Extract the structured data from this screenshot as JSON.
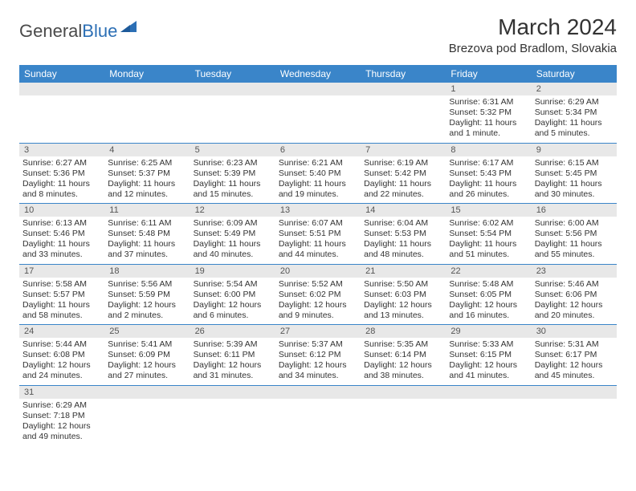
{
  "logo": {
    "general": "General",
    "blue": "Blue"
  },
  "title": "March 2024",
  "location": "Brezova pod Bradlom, Slovakia",
  "colors": {
    "header_bg": "#3a85c9",
    "header_text": "#ffffff",
    "daynum_bg": "#e8e8e8",
    "border": "#3a85c9",
    "text": "#333333",
    "logo_blue": "#2c6fb5"
  },
  "weekdays": [
    "Sunday",
    "Monday",
    "Tuesday",
    "Wednesday",
    "Thursday",
    "Friday",
    "Saturday"
  ],
  "weeks": [
    [
      null,
      null,
      null,
      null,
      null,
      {
        "n": "1",
        "sr": "Sunrise: 6:31 AM",
        "ss": "Sunset: 5:32 PM",
        "dl1": "Daylight: 11 hours",
        "dl2": "and 1 minute."
      },
      {
        "n": "2",
        "sr": "Sunrise: 6:29 AM",
        "ss": "Sunset: 5:34 PM",
        "dl1": "Daylight: 11 hours",
        "dl2": "and 5 minutes."
      }
    ],
    [
      {
        "n": "3",
        "sr": "Sunrise: 6:27 AM",
        "ss": "Sunset: 5:36 PM",
        "dl1": "Daylight: 11 hours",
        "dl2": "and 8 minutes."
      },
      {
        "n": "4",
        "sr": "Sunrise: 6:25 AM",
        "ss": "Sunset: 5:37 PM",
        "dl1": "Daylight: 11 hours",
        "dl2": "and 12 minutes."
      },
      {
        "n": "5",
        "sr": "Sunrise: 6:23 AM",
        "ss": "Sunset: 5:39 PM",
        "dl1": "Daylight: 11 hours",
        "dl2": "and 15 minutes."
      },
      {
        "n": "6",
        "sr": "Sunrise: 6:21 AM",
        "ss": "Sunset: 5:40 PM",
        "dl1": "Daylight: 11 hours",
        "dl2": "and 19 minutes."
      },
      {
        "n": "7",
        "sr": "Sunrise: 6:19 AM",
        "ss": "Sunset: 5:42 PM",
        "dl1": "Daylight: 11 hours",
        "dl2": "and 22 minutes."
      },
      {
        "n": "8",
        "sr": "Sunrise: 6:17 AM",
        "ss": "Sunset: 5:43 PM",
        "dl1": "Daylight: 11 hours",
        "dl2": "and 26 minutes."
      },
      {
        "n": "9",
        "sr": "Sunrise: 6:15 AM",
        "ss": "Sunset: 5:45 PM",
        "dl1": "Daylight: 11 hours",
        "dl2": "and 30 minutes."
      }
    ],
    [
      {
        "n": "10",
        "sr": "Sunrise: 6:13 AM",
        "ss": "Sunset: 5:46 PM",
        "dl1": "Daylight: 11 hours",
        "dl2": "and 33 minutes."
      },
      {
        "n": "11",
        "sr": "Sunrise: 6:11 AM",
        "ss": "Sunset: 5:48 PM",
        "dl1": "Daylight: 11 hours",
        "dl2": "and 37 minutes."
      },
      {
        "n": "12",
        "sr": "Sunrise: 6:09 AM",
        "ss": "Sunset: 5:49 PM",
        "dl1": "Daylight: 11 hours",
        "dl2": "and 40 minutes."
      },
      {
        "n": "13",
        "sr": "Sunrise: 6:07 AM",
        "ss": "Sunset: 5:51 PM",
        "dl1": "Daylight: 11 hours",
        "dl2": "and 44 minutes."
      },
      {
        "n": "14",
        "sr": "Sunrise: 6:04 AM",
        "ss": "Sunset: 5:53 PM",
        "dl1": "Daylight: 11 hours",
        "dl2": "and 48 minutes."
      },
      {
        "n": "15",
        "sr": "Sunrise: 6:02 AM",
        "ss": "Sunset: 5:54 PM",
        "dl1": "Daylight: 11 hours",
        "dl2": "and 51 minutes."
      },
      {
        "n": "16",
        "sr": "Sunrise: 6:00 AM",
        "ss": "Sunset: 5:56 PM",
        "dl1": "Daylight: 11 hours",
        "dl2": "and 55 minutes."
      }
    ],
    [
      {
        "n": "17",
        "sr": "Sunrise: 5:58 AM",
        "ss": "Sunset: 5:57 PM",
        "dl1": "Daylight: 11 hours",
        "dl2": "and 58 minutes."
      },
      {
        "n": "18",
        "sr": "Sunrise: 5:56 AM",
        "ss": "Sunset: 5:59 PM",
        "dl1": "Daylight: 12 hours",
        "dl2": "and 2 minutes."
      },
      {
        "n": "19",
        "sr": "Sunrise: 5:54 AM",
        "ss": "Sunset: 6:00 PM",
        "dl1": "Daylight: 12 hours",
        "dl2": "and 6 minutes."
      },
      {
        "n": "20",
        "sr": "Sunrise: 5:52 AM",
        "ss": "Sunset: 6:02 PM",
        "dl1": "Daylight: 12 hours",
        "dl2": "and 9 minutes."
      },
      {
        "n": "21",
        "sr": "Sunrise: 5:50 AM",
        "ss": "Sunset: 6:03 PM",
        "dl1": "Daylight: 12 hours",
        "dl2": "and 13 minutes."
      },
      {
        "n": "22",
        "sr": "Sunrise: 5:48 AM",
        "ss": "Sunset: 6:05 PM",
        "dl1": "Daylight: 12 hours",
        "dl2": "and 16 minutes."
      },
      {
        "n": "23",
        "sr": "Sunrise: 5:46 AM",
        "ss": "Sunset: 6:06 PM",
        "dl1": "Daylight: 12 hours",
        "dl2": "and 20 minutes."
      }
    ],
    [
      {
        "n": "24",
        "sr": "Sunrise: 5:44 AM",
        "ss": "Sunset: 6:08 PM",
        "dl1": "Daylight: 12 hours",
        "dl2": "and 24 minutes."
      },
      {
        "n": "25",
        "sr": "Sunrise: 5:41 AM",
        "ss": "Sunset: 6:09 PM",
        "dl1": "Daylight: 12 hours",
        "dl2": "and 27 minutes."
      },
      {
        "n": "26",
        "sr": "Sunrise: 5:39 AM",
        "ss": "Sunset: 6:11 PM",
        "dl1": "Daylight: 12 hours",
        "dl2": "and 31 minutes."
      },
      {
        "n": "27",
        "sr": "Sunrise: 5:37 AM",
        "ss": "Sunset: 6:12 PM",
        "dl1": "Daylight: 12 hours",
        "dl2": "and 34 minutes."
      },
      {
        "n": "28",
        "sr": "Sunrise: 5:35 AM",
        "ss": "Sunset: 6:14 PM",
        "dl1": "Daylight: 12 hours",
        "dl2": "and 38 minutes."
      },
      {
        "n": "29",
        "sr": "Sunrise: 5:33 AM",
        "ss": "Sunset: 6:15 PM",
        "dl1": "Daylight: 12 hours",
        "dl2": "and 41 minutes."
      },
      {
        "n": "30",
        "sr": "Sunrise: 5:31 AM",
        "ss": "Sunset: 6:17 PM",
        "dl1": "Daylight: 12 hours",
        "dl2": "and 45 minutes."
      }
    ],
    [
      {
        "n": "31",
        "sr": "Sunrise: 6:29 AM",
        "ss": "Sunset: 7:18 PM",
        "dl1": "Daylight: 12 hours",
        "dl2": "and 49 minutes."
      },
      null,
      null,
      null,
      null,
      null,
      null
    ]
  ]
}
